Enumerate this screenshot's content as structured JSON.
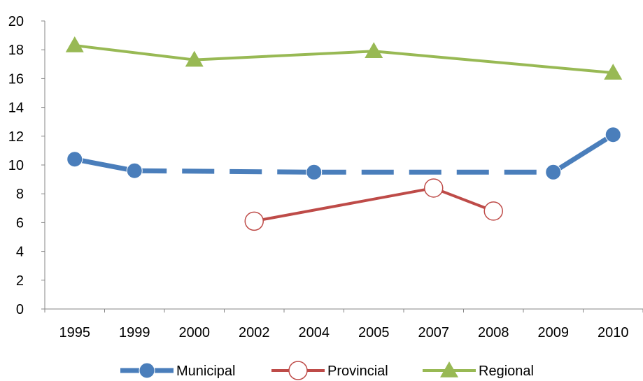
{
  "chart_data": {
    "type": "line",
    "title": "",
    "xlabel": "",
    "ylabel": "",
    "categories": [
      "1995",
      "1999",
      "2000",
      "2002",
      "2004",
      "2005",
      "2007",
      "2008",
      "2009",
      "2010"
    ],
    "ylim": [
      0,
      20
    ],
    "yticks": [
      0,
      2,
      4,
      6,
      8,
      10,
      12,
      14,
      16,
      18,
      20
    ],
    "grid": false,
    "legend_position": "bottom",
    "series": [
      {
        "name": "Municipal",
        "color": "#4a7ebb",
        "marker": "circle-filled",
        "line_style": "dashed-with-solid-ends",
        "values": [
          10.4,
          9.6,
          null,
          null,
          9.5,
          null,
          null,
          null,
          9.5,
          12.1
        ]
      },
      {
        "name": "Provincial",
        "color": "#be4b48",
        "marker": "circle-open",
        "line_style": "solid",
        "values": [
          null,
          null,
          null,
          6.1,
          null,
          null,
          8.4,
          6.8,
          null,
          null
        ]
      },
      {
        "name": "Regional",
        "color": "#98b954",
        "marker": "triangle-filled",
        "line_style": "solid",
        "values": [
          18.3,
          null,
          17.3,
          null,
          null,
          17.9,
          null,
          null,
          null,
          16.4
        ]
      }
    ]
  }
}
